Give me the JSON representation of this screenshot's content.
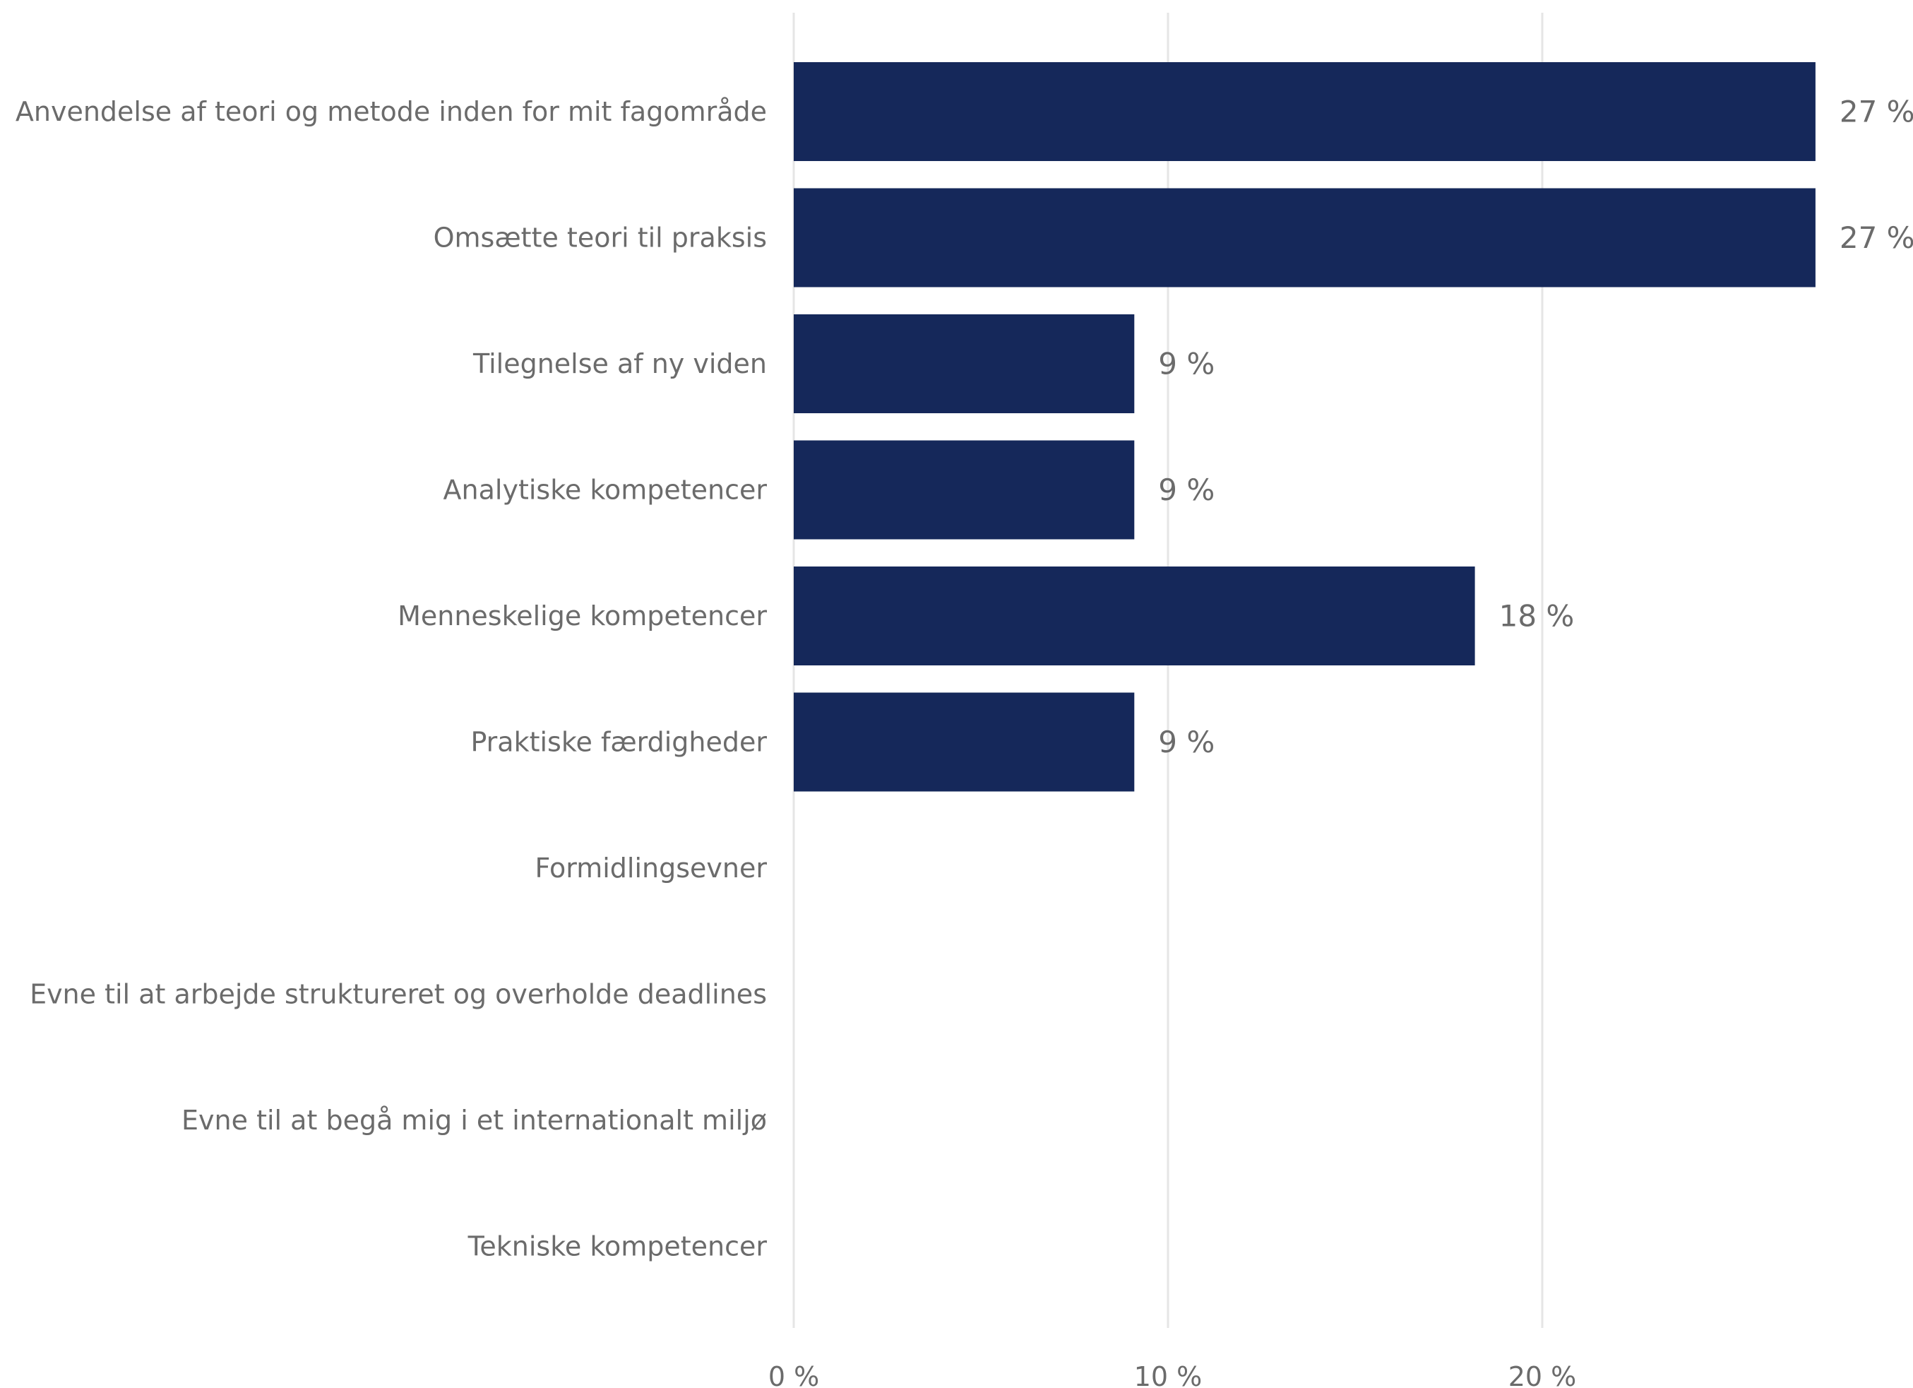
{
  "chart_data": {
    "type": "bar",
    "orientation": "horizontal",
    "categories": [
      "Anvendelse af teori og metode inden for mit fagområde",
      "Omsætte teori til praksis",
      "Tilegnelse af ny viden",
      "Analytiske kompetencer",
      "Menneskelige kompetencer",
      "Praktiske færdigheder",
      "Formidlingsevner",
      "Evne til at arbejde struktureret og overholde deadlines",
      "Evne til at begå mig i et internationalt miljø",
      "Tekniske kompetencer"
    ],
    "values": [
      27.3,
      27.3,
      9.1,
      9.1,
      18.2,
      9.1,
      0,
      0,
      0,
      0
    ],
    "value_labels": [
      "27 %",
      "27 %",
      "9 %",
      "9 %",
      "18 %",
      "9 %",
      "",
      "",
      "",
      ""
    ],
    "xlim": [
      0,
      30
    ],
    "xticks": [
      0,
      10,
      20
    ],
    "xtick_labels": [
      "0 %",
      "10 %",
      "20 %"
    ],
    "title": "",
    "xlabel": "",
    "ylabel": "",
    "grid": "vertical",
    "legend": "none",
    "bar_color": "#15285a",
    "grid_color": "#e5e5e5",
    "text_color": "#6b6b6b"
  }
}
